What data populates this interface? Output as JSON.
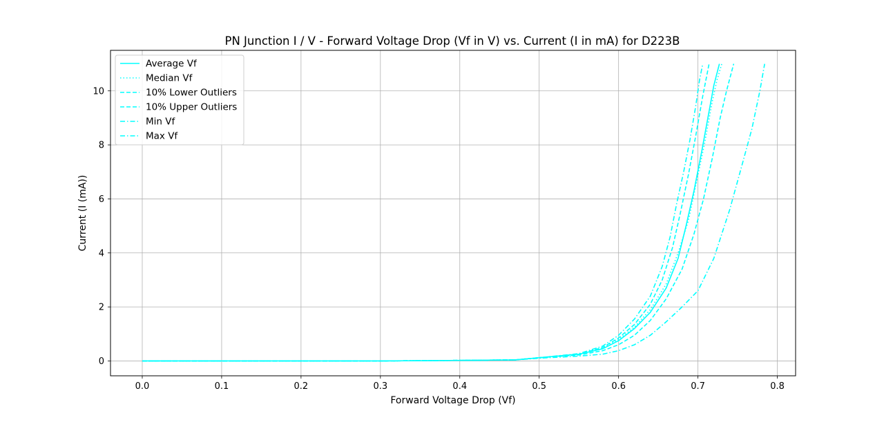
{
  "chart_data": {
    "type": "line",
    "title": "PN Junction I / V - Forward Voltage Drop (Vf in V) vs. Current (I in mA) for D223B",
    "xlabel": "Forward Voltage Drop (Vf)",
    "ylabel": "Current (I (mA))",
    "xlim": [
      -0.04,
      0.823
    ],
    "ylim": [
      -0.55,
      11.5
    ],
    "xticks": [
      "0.0",
      "0.1",
      "0.2",
      "0.3",
      "0.4",
      "0.5",
      "0.6",
      "0.7",
      "0.8"
    ],
    "yticks": [
      "0",
      "2",
      "4",
      "6",
      "8",
      "10"
    ],
    "grid": true,
    "legend_position": "upper-left",
    "color": "#00ffff",
    "series": [
      {
        "name": "Average Vf",
        "style": "solid",
        "points": [
          [
            0,
            0
          ],
          [
            0.1,
            0
          ],
          [
            0.2,
            0
          ],
          [
            0.3,
            0
          ],
          [
            0.4,
            0.02
          ],
          [
            0.47,
            0.04
          ],
          [
            0.5,
            0.12
          ],
          [
            0.55,
            0.25
          ],
          [
            0.58,
            0.45
          ],
          [
            0.6,
            0.75
          ],
          [
            0.62,
            1.2
          ],
          [
            0.64,
            1.8
          ],
          [
            0.66,
            2.7
          ],
          [
            0.675,
            3.8
          ],
          [
            0.685,
            5.0
          ],
          [
            0.695,
            6.3
          ],
          [
            0.705,
            7.8
          ],
          [
            0.715,
            9.4
          ],
          [
            0.72,
            10.2
          ],
          [
            0.727,
            11.0
          ]
        ]
      },
      {
        "name": "Median Vf",
        "style": "dotted",
        "points": [
          [
            0,
            0
          ],
          [
            0.1,
            0
          ],
          [
            0.2,
            0
          ],
          [
            0.3,
            0
          ],
          [
            0.4,
            0.02
          ],
          [
            0.47,
            0.04
          ],
          [
            0.5,
            0.12
          ],
          [
            0.55,
            0.25
          ],
          [
            0.58,
            0.48
          ],
          [
            0.6,
            0.8
          ],
          [
            0.62,
            1.25
          ],
          [
            0.64,
            1.9
          ],
          [
            0.66,
            2.85
          ],
          [
            0.675,
            4.0
          ],
          [
            0.688,
            5.2
          ],
          [
            0.698,
            6.6
          ],
          [
            0.708,
            8.0
          ],
          [
            0.718,
            9.6
          ],
          [
            0.724,
            10.4
          ],
          [
            0.73,
            11.0
          ]
        ]
      },
      {
        "name": "10% Lower Outliers",
        "style": "dashed",
        "points": [
          [
            0,
            0
          ],
          [
            0.1,
            0
          ],
          [
            0.2,
            0
          ],
          [
            0.3,
            0
          ],
          [
            0.4,
            0.02
          ],
          [
            0.47,
            0.04
          ],
          [
            0.5,
            0.12
          ],
          [
            0.55,
            0.25
          ],
          [
            0.58,
            0.5
          ],
          [
            0.6,
            0.85
          ],
          [
            0.62,
            1.35
          ],
          [
            0.64,
            2.1
          ],
          [
            0.655,
            3.0
          ],
          [
            0.668,
            4.2
          ],
          [
            0.678,
            5.5
          ],
          [
            0.688,
            6.9
          ],
          [
            0.697,
            8.3
          ],
          [
            0.706,
            9.8
          ],
          [
            0.71,
            10.4
          ],
          [
            0.714,
            11.0
          ]
        ]
      },
      {
        "name": "10% Upper Outliers",
        "style": "dashed",
        "points": [
          [
            0,
            0
          ],
          [
            0.1,
            0
          ],
          [
            0.2,
            0
          ],
          [
            0.3,
            0
          ],
          [
            0.4,
            0.02
          ],
          [
            0.47,
            0.04
          ],
          [
            0.5,
            0.12
          ],
          [
            0.55,
            0.22
          ],
          [
            0.58,
            0.38
          ],
          [
            0.6,
            0.6
          ],
          [
            0.62,
            0.95
          ],
          [
            0.64,
            1.5
          ],
          [
            0.66,
            2.3
          ],
          [
            0.68,
            3.4
          ],
          [
            0.695,
            4.7
          ],
          [
            0.707,
            6.0
          ],
          [
            0.718,
            7.5
          ],
          [
            0.728,
            9.0
          ],
          [
            0.736,
            10.0
          ],
          [
            0.745,
            11.0
          ]
        ]
      },
      {
        "name": "Min Vf",
        "style": "dashdot",
        "points": [
          [
            0,
            0
          ],
          [
            0.1,
            0
          ],
          [
            0.2,
            0
          ],
          [
            0.3,
            0
          ],
          [
            0.4,
            0.02
          ],
          [
            0.47,
            0.04
          ],
          [
            0.5,
            0.12
          ],
          [
            0.55,
            0.27
          ],
          [
            0.58,
            0.55
          ],
          [
            0.6,
            0.95
          ],
          [
            0.62,
            1.55
          ],
          [
            0.64,
            2.4
          ],
          [
            0.655,
            3.5
          ],
          [
            0.665,
            4.6
          ],
          [
            0.673,
            5.8
          ],
          [
            0.682,
            7.0
          ],
          [
            0.69,
            8.2
          ],
          [
            0.697,
            9.4
          ],
          [
            0.702,
            10.4
          ],
          [
            0.706,
            11.0
          ]
        ]
      },
      {
        "name": "Max Vf",
        "style": "dashdot",
        "points": [
          [
            0,
            0
          ],
          [
            0.1,
            0
          ],
          [
            0.2,
            0
          ],
          [
            0.3,
            0
          ],
          [
            0.4,
            0.02
          ],
          [
            0.47,
            0.04
          ],
          [
            0.5,
            0.1
          ],
          [
            0.55,
            0.18
          ],
          [
            0.58,
            0.25
          ],
          [
            0.6,
            0.38
          ],
          [
            0.62,
            0.6
          ],
          [
            0.64,
            0.95
          ],
          [
            0.66,
            1.45
          ],
          [
            0.68,
            2.0
          ],
          [
            0.7,
            2.6
          ],
          [
            0.72,
            3.8
          ],
          [
            0.74,
            5.6
          ],
          [
            0.755,
            7.2
          ],
          [
            0.768,
            8.6
          ],
          [
            0.778,
            10.0
          ],
          [
            0.784,
            11.0
          ]
        ]
      }
    ]
  }
}
